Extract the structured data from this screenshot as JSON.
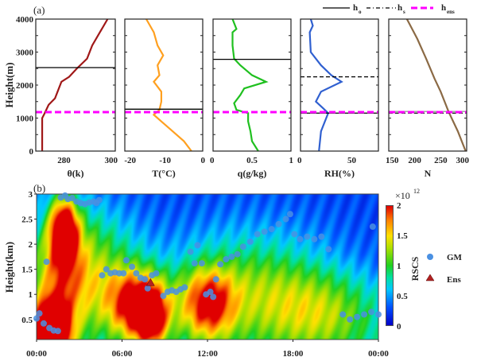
{
  "chart_data": [
    {
      "type": "line",
      "panel_label": "(a)",
      "xlabel": "θ(k)",
      "ylabel": "Height(m)",
      "xlim": [
        269,
        300
      ],
      "ylim": [
        0,
        4000
      ],
      "xticks": [
        280,
        300
      ],
      "yticks": [
        0,
        1000,
        2000,
        3000,
        4000
      ],
      "color": "#a01818",
      "points": [
        [
          271.5,
          0
        ],
        [
          271.5,
          1000
        ],
        [
          272.5,
          1150
        ],
        [
          274,
          1400
        ],
        [
          276.5,
          1600
        ],
        [
          277.5,
          1800
        ],
        [
          279,
          2100
        ],
        [
          282,
          2250
        ],
        [
          285,
          2500
        ],
        [
          289,
          2800
        ],
        [
          291,
          3200
        ],
        [
          294,
          3600
        ],
        [
          297,
          4000
        ]
      ],
      "h_o": 2530,
      "h_ens": 1180
    },
    {
      "type": "line",
      "xlabel": "T(°C)",
      "xlim": [
        -20.7,
        0
      ],
      "ylim": [
        0,
        4000
      ],
      "xticks": [
        -20,
        -10,
        0
      ],
      "color": "#ffa020",
      "points": [
        [
          -3,
          0
        ],
        [
          -5,
          300
        ],
        [
          -8,
          600
        ],
        [
          -11,
          900
        ],
        [
          -13,
          1100
        ],
        [
          -11.5,
          1250
        ],
        [
          -11,
          1500
        ],
        [
          -11,
          1800
        ],
        [
          -13,
          2100
        ],
        [
          -11.5,
          2300
        ],
        [
          -12,
          2600
        ],
        [
          -10.5,
          2900
        ],
        [
          -12,
          3200
        ],
        [
          -13,
          3600
        ],
        [
          -15,
          4000
        ]
      ],
      "h_o": 1270,
      "h_ens": 1180
    },
    {
      "type": "line",
      "xlabel": "q(g/kg)",
      "xlim": [
        0,
        1
      ],
      "ylim": [
        0,
        4000
      ],
      "xticks": [
        0,
        0.5,
        1
      ],
      "color": "#20c020",
      "points": [
        [
          0.58,
          0
        ],
        [
          0.5,
          300
        ],
        [
          0.48,
          600
        ],
        [
          0.45,
          900
        ],
        [
          0.45,
          1150
        ],
        [
          0.3,
          1250
        ],
        [
          0.27,
          1450
        ],
        [
          0.35,
          1700
        ],
        [
          0.4,
          1900
        ],
        [
          0.68,
          2100
        ],
        [
          0.5,
          2300
        ],
        [
          0.35,
          2600
        ],
        [
          0.27,
          2800
        ],
        [
          0.25,
          3200
        ],
        [
          0.25,
          3600
        ],
        [
          0.3,
          3700
        ],
        [
          0.25,
          4000
        ]
      ],
      "h_o": 2780,
      "h_ens": 1180
    },
    {
      "type": "line",
      "xlabel": "RH(%)",
      "xlim": [
        0,
        76
      ],
      "ylim": [
        0,
        4000
      ],
      "xticks": [
        0,
        50
      ],
      "color": "#3060d0",
      "points": [
        [
          18,
          0
        ],
        [
          20,
          600
        ],
        [
          27,
          1150
        ],
        [
          22,
          1300
        ],
        [
          15,
          1500
        ],
        [
          20,
          1800
        ],
        [
          40,
          2100
        ],
        [
          30,
          2300
        ],
        [
          20,
          2600
        ],
        [
          10,
          3000
        ],
        [
          9,
          3600
        ],
        [
          12,
          3800
        ],
        [
          10,
          4000
        ]
      ],
      "h_o": 1150,
      "h_s": 2250,
      "h_ens": 1180
    },
    {
      "type": "line",
      "xlabel": "N",
      "xlim": [
        150,
        300
      ],
      "ylim": [
        0,
        4000
      ],
      "xticks": [
        150,
        200,
        250,
        300
      ],
      "color": "#8b6a45",
      "points": [
        [
          298,
          0
        ],
        [
          283,
          600
        ],
        [
          265,
          1200
        ],
        [
          250,
          1800
        ],
        [
          238,
          2200
        ],
        [
          222,
          2800
        ],
        [
          205,
          3400
        ],
        [
          185,
          4000
        ]
      ],
      "h_o": 1200,
      "h_s": 1150,
      "h_ens": 1180
    },
    {
      "type": "heatmap",
      "panel_label": "(b)",
      "ylabel": "Height(km)",
      "xticks": [
        "00:00",
        "06:00",
        "12:00",
        "18:00",
        "00:00"
      ],
      "yticks": [
        0.5,
        1,
        1.5,
        2,
        2.5,
        3
      ],
      "ylim": [
        0.1,
        3
      ],
      "xlim_hours": [
        0,
        24
      ],
      "colorbar": {
        "label": "RSCS",
        "ticks": [
          "0",
          "0.5",
          "1",
          "1.5",
          "2"
        ],
        "exponent": "×10",
        "exponent_power": "12",
        "range": [
          0,
          2000000000000.0
        ]
      },
      "series": [
        {
          "name": "GM",
          "marker": "circle",
          "color": "#4a90e2",
          "points": [
            [
              0,
              0.52
            ],
            [
              0.2,
              0.62
            ],
            [
              0.5,
              0.42
            ],
            [
              0.9,
              0.33
            ],
            [
              1.2,
              0.28
            ],
            [
              1.5,
              0.27
            ],
            [
              0.7,
              1.65
            ],
            [
              1.7,
              2.93
            ],
            [
              2,
              2.97
            ],
            [
              2.2,
              2.9
            ],
            [
              2.5,
              2.92
            ],
            [
              2.8,
              2.85
            ],
            [
              3.1,
              2.82
            ],
            [
              3.4,
              2.8
            ],
            [
              3.7,
              2.83
            ],
            [
              4,
              2.85
            ],
            [
              4.2,
              2.82
            ],
            [
              4.4,
              2.88
            ],
            [
              4.6,
              1.38
            ],
            [
              4.9,
              1.5
            ],
            [
              5.2,
              1.42
            ],
            [
              5.5,
              1.44
            ],
            [
              5.8,
              1.42
            ],
            [
              6.1,
              1.42
            ],
            [
              6.3,
              1.68
            ],
            [
              6.7,
              1.55
            ],
            [
              7,
              1.42
            ],
            [
              7.3,
              1.33
            ],
            [
              7.6,
              1.3
            ],
            [
              7.8,
              1.12
            ],
            [
              8.1,
              1.38
            ],
            [
              8.4,
              1.42
            ],
            [
              8.9,
              0.97
            ],
            [
              9.2,
              1.05
            ],
            [
              9.5,
              1.08
            ],
            [
              9.8,
              1.05
            ],
            [
              10.1,
              1.1
            ],
            [
              10.4,
              1.14
            ],
            [
              10.8,
              1.85
            ],
            [
              11.1,
              1.62
            ],
            [
              11.3,
              1.98
            ],
            [
              11.6,
              1.62
            ],
            [
              11.9,
              1.0
            ],
            [
              12.2,
              1.05
            ],
            [
              12.4,
              0.95
            ],
            [
              12.6,
              1.3
            ],
            [
              12.9,
              1.6
            ],
            [
              13.3,
              1.7
            ],
            [
              13.7,
              1.75
            ],
            [
              14.1,
              1.8
            ],
            [
              14.5,
              1.95
            ],
            [
              15,
              2.05
            ],
            [
              15.5,
              2.2
            ],
            [
              16,
              2.25
            ],
            [
              16.5,
              2.3
            ],
            [
              17,
              2.4
            ],
            [
              17.5,
              2.5
            ],
            [
              17.8,
              2.6
            ],
            [
              18.1,
              2.2
            ],
            [
              18.5,
              2.1
            ],
            [
              19,
              2.15
            ],
            [
              19.5,
              2.1
            ],
            [
              20,
              2.15
            ],
            [
              20.5,
              1.9
            ],
            [
              21.5,
              0.6
            ],
            [
              22,
              0.5
            ],
            [
              22.5,
              0.55
            ],
            [
              23,
              0.6
            ],
            [
              23.5,
              0.65
            ],
            [
              24,
              0.6
            ],
            [
              23.6,
              2.35
            ]
          ]
        },
        {
          "name": "Ens",
          "marker": "triangle",
          "color": "#b22222",
          "points": [
            [
              8,
              1.22
            ]
          ]
        }
      ]
    }
  ],
  "legend": {
    "h_o": "h",
    "h_o_sub": "o",
    "h_s": "h",
    "h_s_sub": "s",
    "h_ens": "h",
    "h_ens_sub": "ens"
  }
}
